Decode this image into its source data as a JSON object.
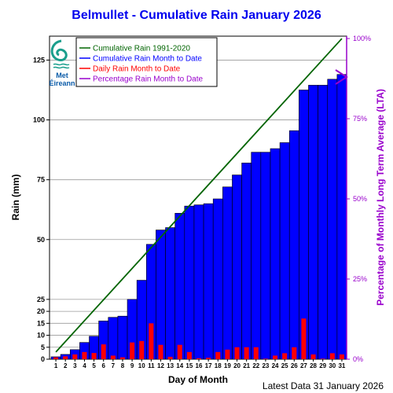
{
  "chart_data": {
    "type": "bar",
    "title": "Belmullet - Cumulative Rain January   2026",
    "xlabel": "Day of Month",
    "ylabel": "Rain (mm)",
    "y2label": "Percentage  of Monthly Long Term Average (LTA)",
    "ylim": [
      0,
      135
    ],
    "y2lim": [
      0,
      100
    ],
    "yticks": [
      0,
      5,
      10,
      15,
      20,
      25,
      50,
      75,
      100,
      125
    ],
    "y2ticks": [
      "0%",
      "25%",
      "50%",
      "75%",
      "100%"
    ],
    "grid": true,
    "legend_position": "top-left",
    "categories": [
      "1",
      "2",
      "3",
      "4",
      "5",
      "6",
      "7",
      "8",
      "9",
      "10",
      "11",
      "12",
      "13",
      "14",
      "15",
      "16",
      "17",
      "18",
      "19",
      "20",
      "21",
      "22",
      "23",
      "24",
      "25",
      "26",
      "27",
      "28",
      "29",
      "30",
      "31"
    ],
    "series": [
      {
        "name": "Cumulative Rain 1991-2020",
        "kind": "line",
        "color": "#006400",
        "start": 3,
        "end": 134
      },
      {
        "name": "Cumulative Rain Month to Date",
        "kind": "bar",
        "color": "#0000ff",
        "values": [
          1,
          2,
          4,
          7,
          9.6,
          16,
          17.5,
          18,
          25,
          33,
          48,
          54,
          55,
          61,
          64,
          64.5,
          65,
          67,
          72,
          77,
          82,
          86.5,
          86.5,
          88,
          90.5,
          95.5,
          112.5,
          114.5,
          114.5,
          117,
          119
        ]
      },
      {
        "name": "Daily Rain Month to Date",
        "kind": "bar",
        "color": "#ff0000",
        "values": [
          0.8,
          1.2,
          2,
          3,
          2.6,
          6.2,
          1.5,
          0.8,
          7,
          7.6,
          15,
          6,
          1,
          6,
          3,
          0.4,
          0.6,
          3,
          4,
          5,
          5,
          5,
          0.2,
          1.5,
          2.5,
          5,
          17,
          2,
          0.2,
          2.5,
          2
        ]
      },
      {
        "name": "Percentage Rain Month to Date",
        "kind": "marker",
        "color": "#9900cc",
        "value": 88
      }
    ]
  },
  "footer": {
    "latest": "Latest Data 31 January 2026"
  },
  "logo": {
    "line1": "Met",
    "line2": "Éireann"
  }
}
